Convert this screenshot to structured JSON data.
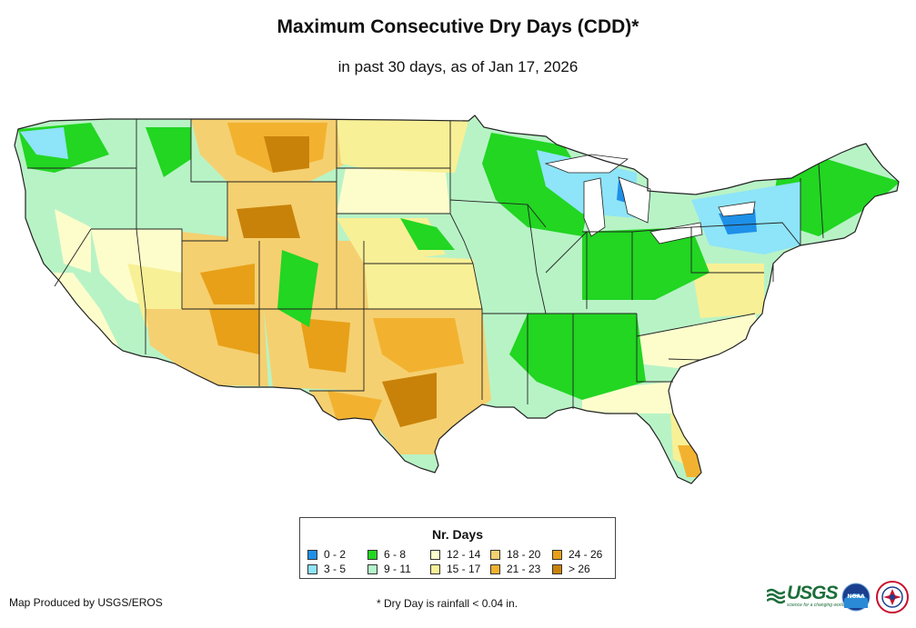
{
  "title": "Maximum Consecutive Dry Days (CDD)*",
  "subtitle": "in past 30 days, as of Jan 17, 2026",
  "legend": {
    "title": "Nr. Days",
    "items": [
      {
        "label": "0 - 2",
        "color": "#1e90e8"
      },
      {
        "label": "3 - 5",
        "color": "#8ee4f8"
      },
      {
        "label": "6 - 8",
        "color": "#22d622"
      },
      {
        "label": "9 - 11",
        "color": "#b3f5c8"
      },
      {
        "label": "12 - 14",
        "color": "#fdfdcc"
      },
      {
        "label": "15 - 17",
        "color": "#f8f096"
      },
      {
        "label": "18 - 20",
        "color": "#f5d070"
      },
      {
        "label": "21 - 23",
        "color": "#f2b230"
      },
      {
        "label": "24 - 26",
        "color": "#e8a018"
      },
      {
        "label": "> 26",
        "color": "#c8820a"
      }
    ]
  },
  "credit": "Map Produced by USGS/EROS",
  "footnote": "* Dry Day is rainfall < 0.04 in.",
  "logos": {
    "usgs": {
      "icon": "usgs-logo-icon",
      "text": "USGS",
      "tagline": "science for a changing world",
      "color": "#1b6e3a"
    },
    "noaa": {
      "icon": "noaa-logo-icon",
      "text": "NOAA"
    },
    "nws": {
      "icon": "nws-logo-icon"
    }
  }
}
